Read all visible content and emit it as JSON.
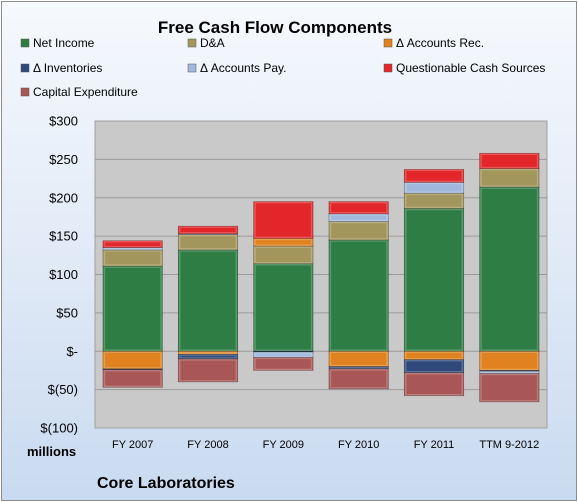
{
  "chart_data": {
    "type": "bar",
    "stacked": true,
    "title": "Free Cash Flow Components",
    "categories": [
      "FY 2007",
      "FY 2008",
      "FY 2009",
      "FY 2010",
      "FY 2011",
      "TTM 9-2012"
    ],
    "series": [
      {
        "name": "Net Income",
        "color": "#2e7d45",
        "values": [
          111,
          132,
          114,
          145,
          186,
          214
        ]
      },
      {
        "name": "D&A",
        "color": "#a3965c",
        "values": [
          21,
          20,
          23,
          24,
          20,
          24
        ]
      },
      {
        "name": "Δ Accounts Rec.",
        "color": "#e0821f",
        "values": [
          -23,
          -4,
          10,
          -20,
          -11,
          -25
        ]
      },
      {
        "name": "Δ Inventories",
        "color": "#2f4a7a",
        "values": [
          -1,
          -6,
          -1,
          -3,
          -17,
          -1
        ]
      },
      {
        "name": "Δ Accounts Pay.",
        "color": "#9fb8dc",
        "values": [
          3,
          1,
          -7,
          10,
          14,
          -3
        ]
      },
      {
        "name": "Questionable Cash Sources",
        "color": "#e2262a",
        "values": [
          9,
          10,
          48,
          16,
          17,
          20
        ]
      },
      {
        "name": "Capital Expenditure",
        "color": "#a85656",
        "values": [
          -23,
          -30,
          -17,
          -26,
          -30,
          -37
        ]
      }
    ],
    "y_ticks": [
      "$300",
      "$250",
      "$200",
      "$150",
      "$100",
      "$50",
      "$-",
      "$(50)",
      "$(100)"
    ],
    "ylim": [
      -100,
      300
    ],
    "ylabel": "millions",
    "grid": true,
    "legend": "top"
  },
  "company": "Core Laboratories"
}
